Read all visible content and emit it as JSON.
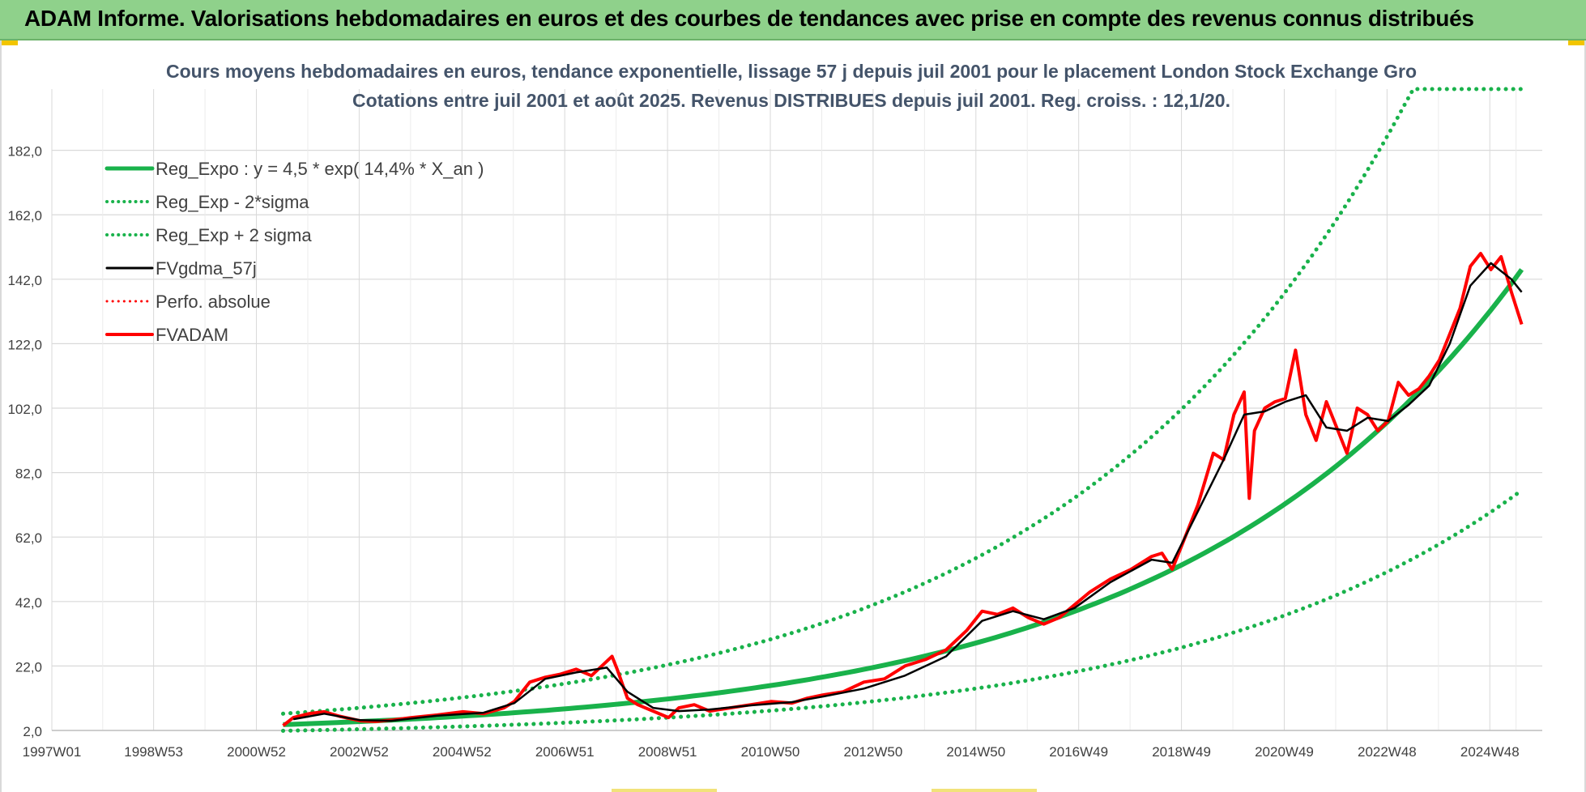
{
  "banner": {
    "title": "ADAM Informe. Valorisations hebdomadaires en euros et des courbes de tendances avec prise en compte des revenus connus distribués"
  },
  "colors": {
    "banner_bg": "#8fd18b",
    "trend_green": "#19b24b",
    "price_red": "#ff0000",
    "smooth_black": "#000000",
    "grid": "#d9d9d9",
    "title_text": "#44546a"
  },
  "chart_data": {
    "type": "line",
    "title": "Cours moyens hebdomadaires en euros, tendance exponentielle, lissage 57 j depuis juil 2001 pour le placement London Stock Exchange Gro",
    "subtitle": "Cotations entre juil 2001 et août 2025. Revenus DISTRIBUES depuis juil 2001. Reg. croiss. : 12,1/20.",
    "xlabel": "",
    "ylabel": "",
    "x_ticks": [
      "1997W01",
      "1998W53",
      "2000W52",
      "2002W52",
      "2004W52",
      "2006W51",
      "2008W51",
      "2010W50",
      "2012W50",
      "2014W50",
      "2016W49",
      "2018W49",
      "2020W49",
      "2022W48",
      "2024W48"
    ],
    "x_range_years": [
      1997.0,
      2026.0
    ],
    "ylim": [
      2.0,
      201.0
    ],
    "y_ticks": [
      "2,0",
      "22,0",
      "42,0",
      "62,0",
      "82,0",
      "102,0",
      "122,0",
      "142,0",
      "162,0",
      "182,0"
    ],
    "y_tick_values": [
      2,
      22,
      42,
      62,
      82,
      102,
      122,
      142,
      162,
      182
    ],
    "grid": true,
    "legend_position": "top-left",
    "legend": [
      {
        "label": "Reg_Expo : y = 4,5 * exp( 14,4% *  X_an )",
        "style": "solid",
        "color": "#19b24b",
        "width": 5
      },
      {
        "label": "Reg_Exp - 2*sigma",
        "style": "dotted",
        "color": "#19b24b",
        "width": 4
      },
      {
        "label": "Reg_Exp + 2 sigma",
        "style": "dotted",
        "color": "#19b24b",
        "width": 4
      },
      {
        "label": "FVgdma_57j",
        "style": "solid",
        "color": "#000000",
        "width": 3
      },
      {
        "label": "Perfo. absolue",
        "style": "dotted",
        "color": "#ff0000",
        "width": 3
      },
      {
        "label": "FVADAM",
        "style": "solid",
        "color": "#ff0000",
        "width": 4
      }
    ],
    "series": [
      {
        "name": "Reg_Expo : y = 4,5 * exp( 14,4% *  X_an )",
        "kind": "exp_trend",
        "x": [
          2001.5,
          2025.6
        ],
        "y_at_start": 3.8,
        "y_at_end": 145.0
      },
      {
        "name": "Reg_Exp - 2*sigma",
        "kind": "exp_trend_lower",
        "x": [
          2001.5,
          2025.6
        ],
        "y_at_start": 1.9,
        "y_at_end": 76.5
      },
      {
        "name": "Reg_Exp + 2 sigma",
        "kind": "exp_trend_upper",
        "x": [
          2001.5,
          2025.6
        ],
        "y_at_start": 7.2,
        "y_at_end": 277.0,
        "clipped_at": 201.0
      },
      {
        "name": "FVADAM",
        "kind": "price",
        "x": [
          2001.5,
          2001.7,
          2002.0,
          2002.3,
          2002.6,
          2003.0,
          2003.3,
          2003.6,
          2004.0,
          2004.5,
          2005.0,
          2005.4,
          2005.8,
          2006.0,
          2006.3,
          2006.6,
          2006.9,
          2007.2,
          2007.5,
          2007.7,
          2007.9,
          2008.0,
          2008.2,
          2008.4,
          2008.7,
          2009.0,
          2009.2,
          2009.5,
          2009.8,
          2010.2,
          2010.6,
          2011.0,
          2011.4,
          2011.7,
          2012.0,
          2012.4,
          2012.8,
          2013.2,
          2013.6,
          2014.0,
          2014.4,
          2014.8,
          2015.1,
          2015.4,
          2015.7,
          2016.0,
          2016.3,
          2016.6,
          2016.9,
          2017.2,
          2017.6,
          2018.0,
          2018.4,
          2018.6,
          2018.8,
          2019.0,
          2019.3,
          2019.6,
          2019.8,
          2020.0,
          2020.2,
          2020.3,
          2020.4,
          2020.6,
          2020.8,
          2021.0,
          2021.2,
          2021.4,
          2021.6,
          2021.8,
          2022.0,
          2022.2,
          2022.4,
          2022.6,
          2022.8,
          2023.0,
          2023.2,
          2023.4,
          2023.6,
          2023.8,
          2024.0,
          2024.2,
          2024.4,
          2024.6,
          2024.8,
          2025.0,
          2025.2,
          2025.4,
          2025.6
        ],
        "y": [
          3.5,
          6.0,
          7.2,
          7.8,
          6.4,
          5.0,
          4.8,
          5.2,
          6.0,
          6.8,
          7.8,
          7.2,
          9.0,
          11.0,
          17.0,
          18.5,
          19.5,
          21.0,
          19.0,
          22.0,
          25.0,
          21.0,
          12.0,
          10.0,
          8.0,
          6.0,
          9.0,
          10.0,
          8.0,
          9.0,
          10.0,
          11.0,
          10.5,
          12.0,
          13.0,
          14.0,
          17.0,
          18.0,
          22.0,
          24.0,
          27.0,
          33.0,
          39.0,
          38.0,
          40.0,
          37.0,
          35.0,
          37.0,
          41.0,
          45.0,
          49.0,
          52.0,
          56.0,
          57.0,
          52.0,
          60.0,
          72.0,
          88.0,
          86.0,
          100.0,
          107.0,
          74.0,
          95.0,
          102.0,
          104.0,
          105.0,
          120.0,
          100.0,
          92.0,
          104.0,
          96.0,
          88.0,
          102.0,
          100.0,
          95.0,
          98.0,
          110.0,
          106.0,
          108.0,
          112.0,
          117.0,
          125.0,
          133.0,
          146.0,
          150.0,
          145.0,
          149.0,
          138.0,
          128.0
        ]
      },
      {
        "name": "FVgdma_57j",
        "kind": "smoothed",
        "note_values_approx": true,
        "x": [
          2001.7,
          2002.3,
          2003.0,
          2003.6,
          2004.5,
          2005.4,
          2006.0,
          2006.6,
          2007.2,
          2007.8,
          2008.2,
          2008.7,
          2009.2,
          2009.8,
          2010.6,
          2011.4,
          2012.0,
          2012.8,
          2013.6,
          2014.4,
          2015.1,
          2015.7,
          2016.3,
          2016.9,
          2017.6,
          2018.4,
          2018.8,
          2019.3,
          2019.8,
          2020.2,
          2020.6,
          2021.0,
          2021.4,
          2021.8,
          2022.2,
          2022.6,
          2023.0,
          2023.4,
          2023.8,
          2024.2,
          2024.6,
          2025.0,
          2025.4,
          2025.6
        ],
        "y": [
          5.5,
          7.2,
          5.2,
          5.0,
          6.6,
          7.5,
          10.5,
          18.0,
          20.0,
          21.5,
          14.0,
          9.0,
          8.0,
          8.5,
          9.8,
          10.8,
          12.5,
          15.0,
          19.0,
          25.0,
          36.0,
          39.0,
          36.5,
          40.0,
          48.0,
          55.0,
          54.0,
          70.0,
          86.0,
          100.0,
          101.0,
          104.0,
          106.0,
          96.0,
          95.0,
          99.0,
          98.0,
          103.0,
          109.0,
          122.0,
          140.0,
          147.0,
          142.0,
          138.0
        ]
      }
    ]
  }
}
